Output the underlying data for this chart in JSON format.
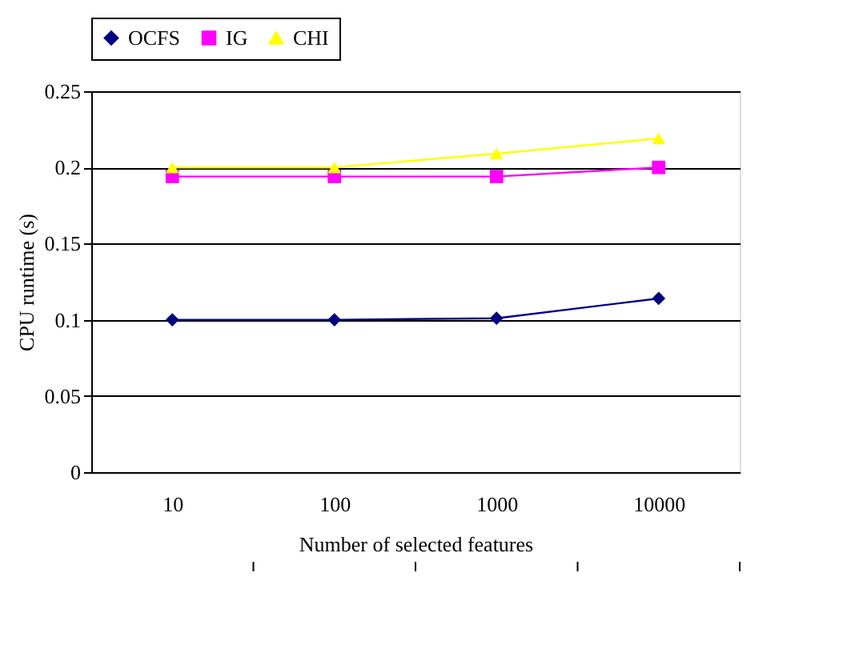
{
  "chart_data": {
    "type": "line",
    "xlabel": "Number of selected features",
    "ylabel": "CPU runtime (s)",
    "categories": [
      "10",
      "100",
      "1000",
      "10000"
    ],
    "series": [
      {
        "name": "OCFS",
        "color": "#000080",
        "marker": "diamond",
        "values": [
          0.1,
          0.1,
          0.101,
          0.114
        ]
      },
      {
        "name": "IG",
        "color": "#ff00ff",
        "marker": "square",
        "values": [
          0.194,
          0.194,
          0.194,
          0.2
        ]
      },
      {
        "name": "CHI",
        "color": "#ffff00",
        "marker": "triangle",
        "values": [
          0.2,
          0.2,
          0.209,
          0.219
        ]
      }
    ],
    "ylim": [
      0,
      0.25
    ],
    "yticks": [
      0,
      0.05,
      0.1,
      0.15,
      0.2,
      0.25
    ],
    "grid": "y",
    "legend": "top"
  }
}
